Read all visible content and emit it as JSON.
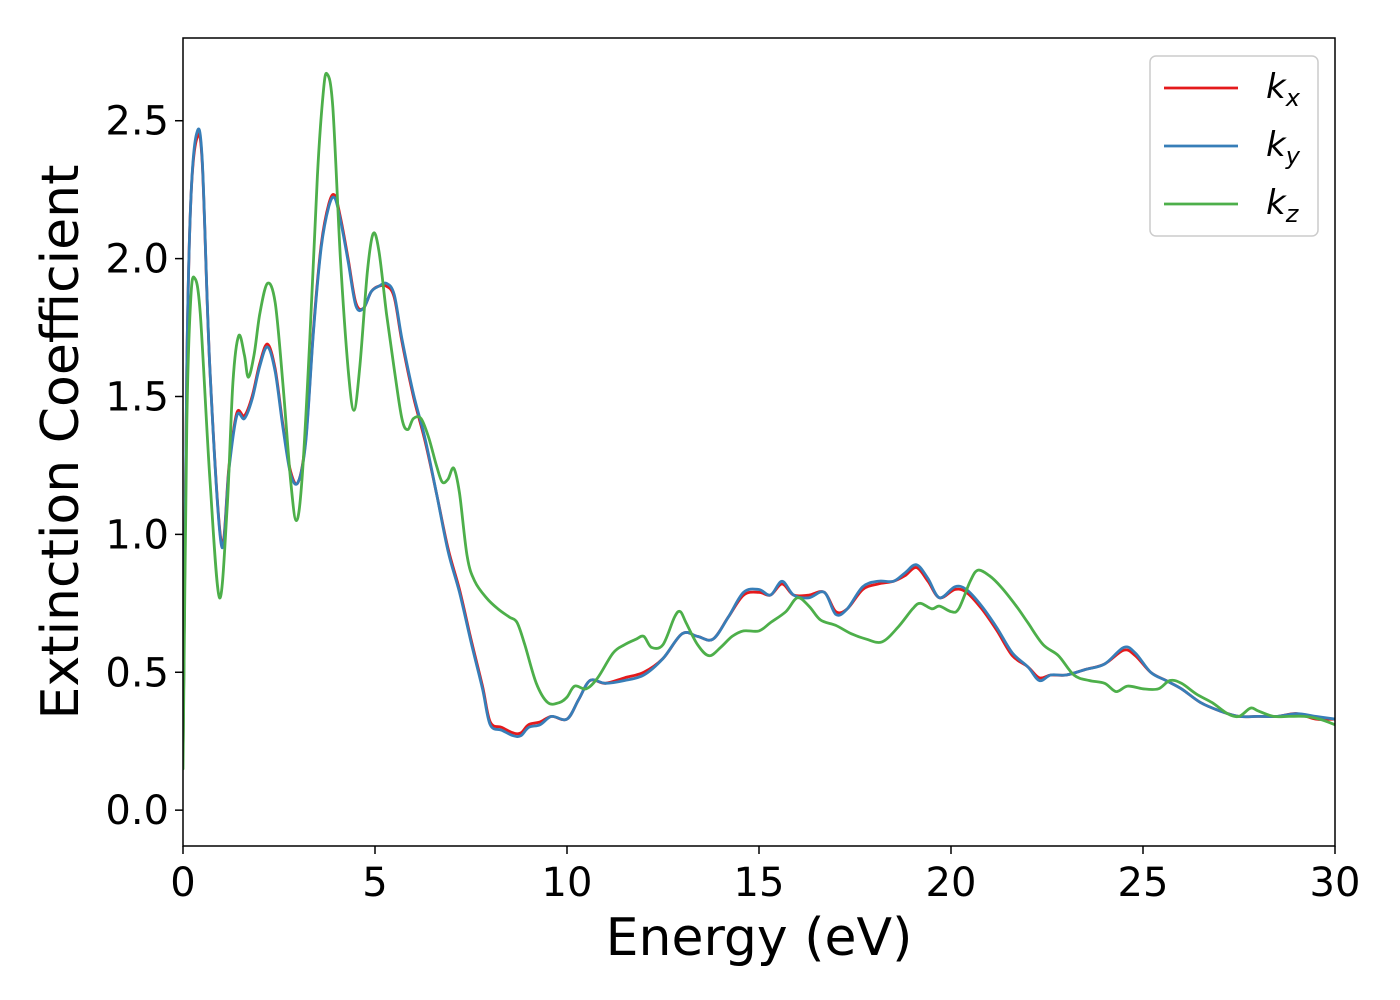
{
  "chart_data": {
    "type": "line",
    "title": "",
    "xlabel": "Energy (eV)",
    "ylabel": "Extinction Coefficient",
    "xlim": [
      0,
      30
    ],
    "ylim": [
      -0.13,
      2.8
    ],
    "xticks": [
      0,
      5,
      10,
      15,
      20,
      25,
      30
    ],
    "xtick_labels": [
      "0",
      "5",
      "10",
      "15",
      "20",
      "25",
      "30"
    ],
    "yticks": [
      0.0,
      0.5,
      1.0,
      1.5,
      2.0,
      2.5
    ],
    "ytick_labels": [
      "0.0",
      "0.5",
      "1.0",
      "1.5",
      "2.0",
      "2.5"
    ],
    "grid": false,
    "legend": {
      "placement": "top-right",
      "entries": [
        {
          "base": "k",
          "sub": "x",
          "color": "#e41a1c"
        },
        {
          "base": "k",
          "sub": "y",
          "color": "#377eb8"
        },
        {
          "base": "k",
          "sub": "z",
          "color": "#4daf4a"
        }
      ]
    },
    "series": [
      {
        "key": "kx",
        "color": "#e41a1c",
        "points": [
          [
            0,
            0.2
          ],
          [
            0.1,
            1.6
          ],
          [
            0.2,
            2.2
          ],
          [
            0.35,
            2.43
          ],
          [
            0.5,
            2.35
          ],
          [
            0.7,
            1.6
          ],
          [
            1.0,
            0.97
          ],
          [
            1.2,
            1.25
          ],
          [
            1.4,
            1.44
          ],
          [
            1.6,
            1.43
          ],
          [
            1.8,
            1.5
          ],
          [
            2.0,
            1.62
          ],
          [
            2.2,
            1.69
          ],
          [
            2.4,
            1.6
          ],
          [
            2.6,
            1.4
          ],
          [
            2.8,
            1.23
          ],
          [
            3.0,
            1.19
          ],
          [
            3.2,
            1.35
          ],
          [
            3.4,
            1.75
          ],
          [
            3.6,
            2.05
          ],
          [
            3.8,
            2.2
          ],
          [
            3.95,
            2.23
          ],
          [
            4.1,
            2.15
          ],
          [
            4.3,
            2.0
          ],
          [
            4.5,
            1.84
          ],
          [
            4.7,
            1.82
          ],
          [
            4.9,
            1.88
          ],
          [
            5.1,
            1.9
          ],
          [
            5.3,
            1.9
          ],
          [
            5.5,
            1.86
          ],
          [
            5.7,
            1.7
          ],
          [
            6.0,
            1.5
          ],
          [
            6.3,
            1.34
          ],
          [
            6.6,
            1.15
          ],
          [
            6.9,
            0.95
          ],
          [
            7.2,
            0.8
          ],
          [
            7.5,
            0.62
          ],
          [
            7.8,
            0.45
          ],
          [
            8.0,
            0.32
          ],
          [
            8.3,
            0.3
          ],
          [
            8.6,
            0.28
          ],
          [
            8.8,
            0.28
          ],
          [
            9.0,
            0.31
          ],
          [
            9.3,
            0.32
          ],
          [
            9.6,
            0.34
          ],
          [
            10.0,
            0.33
          ],
          [
            10.3,
            0.4
          ],
          [
            10.6,
            0.47
          ],
          [
            11.0,
            0.46
          ],
          [
            11.5,
            0.48
          ],
          [
            12.0,
            0.5
          ],
          [
            12.5,
            0.55
          ],
          [
            13.0,
            0.64
          ],
          [
            13.4,
            0.63
          ],
          [
            13.8,
            0.62
          ],
          [
            14.2,
            0.7
          ],
          [
            14.6,
            0.78
          ],
          [
            15.0,
            0.79
          ],
          [
            15.3,
            0.78
          ],
          [
            15.6,
            0.82
          ],
          [
            15.9,
            0.78
          ],
          [
            16.3,
            0.78
          ],
          [
            16.7,
            0.79
          ],
          [
            17.0,
            0.72
          ],
          [
            17.3,
            0.73
          ],
          [
            17.7,
            0.8
          ],
          [
            18.1,
            0.82
          ],
          [
            18.5,
            0.83
          ],
          [
            18.8,
            0.85
          ],
          [
            19.1,
            0.88
          ],
          [
            19.4,
            0.83
          ],
          [
            19.7,
            0.77
          ],
          [
            20.1,
            0.8
          ],
          [
            20.4,
            0.79
          ],
          [
            20.8,
            0.73
          ],
          [
            21.2,
            0.65
          ],
          [
            21.6,
            0.56
          ],
          [
            22.0,
            0.52
          ],
          [
            22.3,
            0.48
          ],
          [
            22.6,
            0.49
          ],
          [
            23.0,
            0.49
          ],
          [
            23.5,
            0.51
          ],
          [
            24.0,
            0.53
          ],
          [
            24.5,
            0.58
          ],
          [
            24.8,
            0.56
          ],
          [
            25.2,
            0.5
          ],
          [
            25.6,
            0.47
          ],
          [
            26.0,
            0.44
          ],
          [
            26.5,
            0.39
          ],
          [
            27.0,
            0.36
          ],
          [
            27.5,
            0.34
          ],
          [
            28.0,
            0.34
          ],
          [
            28.5,
            0.34
          ],
          [
            29.0,
            0.35
          ],
          [
            29.5,
            0.33
          ],
          [
            30.0,
            0.33
          ]
        ]
      },
      {
        "key": "ky",
        "color": "#377eb8",
        "points": [
          [
            0,
            0.2
          ],
          [
            0.1,
            1.6
          ],
          [
            0.2,
            2.2
          ],
          [
            0.35,
            2.45
          ],
          [
            0.5,
            2.36
          ],
          [
            0.7,
            1.6
          ],
          [
            1.0,
            0.96
          ],
          [
            1.2,
            1.24
          ],
          [
            1.4,
            1.43
          ],
          [
            1.6,
            1.42
          ],
          [
            1.8,
            1.49
          ],
          [
            2.0,
            1.61
          ],
          [
            2.2,
            1.68
          ],
          [
            2.4,
            1.59
          ],
          [
            2.6,
            1.39
          ],
          [
            2.8,
            1.22
          ],
          [
            3.0,
            1.19
          ],
          [
            3.2,
            1.34
          ],
          [
            3.4,
            1.74
          ],
          [
            3.6,
            2.04
          ],
          [
            3.8,
            2.19
          ],
          [
            3.95,
            2.22
          ],
          [
            4.1,
            2.14
          ],
          [
            4.3,
            1.99
          ],
          [
            4.5,
            1.83
          ],
          [
            4.7,
            1.82
          ],
          [
            4.9,
            1.88
          ],
          [
            5.1,
            1.9
          ],
          [
            5.3,
            1.91
          ],
          [
            5.5,
            1.87
          ],
          [
            5.7,
            1.71
          ],
          [
            6.0,
            1.51
          ],
          [
            6.3,
            1.35
          ],
          [
            6.6,
            1.15
          ],
          [
            6.9,
            0.94
          ],
          [
            7.2,
            0.79
          ],
          [
            7.5,
            0.61
          ],
          [
            7.8,
            0.44
          ],
          [
            8.0,
            0.31
          ],
          [
            8.3,
            0.29
          ],
          [
            8.6,
            0.27
          ],
          [
            8.8,
            0.27
          ],
          [
            9.0,
            0.3
          ],
          [
            9.3,
            0.31
          ],
          [
            9.6,
            0.34
          ],
          [
            10.0,
            0.33
          ],
          [
            10.3,
            0.4
          ],
          [
            10.6,
            0.47
          ],
          [
            11.0,
            0.46
          ],
          [
            11.5,
            0.47
          ],
          [
            12.0,
            0.49
          ],
          [
            12.5,
            0.55
          ],
          [
            13.0,
            0.64
          ],
          [
            13.4,
            0.63
          ],
          [
            13.8,
            0.62
          ],
          [
            14.2,
            0.7
          ],
          [
            14.6,
            0.79
          ],
          [
            15.0,
            0.8
          ],
          [
            15.3,
            0.78
          ],
          [
            15.6,
            0.83
          ],
          [
            15.9,
            0.78
          ],
          [
            16.3,
            0.77
          ],
          [
            16.7,
            0.79
          ],
          [
            17.0,
            0.71
          ],
          [
            17.3,
            0.73
          ],
          [
            17.7,
            0.81
          ],
          [
            18.1,
            0.83
          ],
          [
            18.5,
            0.83
          ],
          [
            18.8,
            0.86
          ],
          [
            19.1,
            0.89
          ],
          [
            19.4,
            0.84
          ],
          [
            19.7,
            0.77
          ],
          [
            20.1,
            0.81
          ],
          [
            20.4,
            0.8
          ],
          [
            20.8,
            0.74
          ],
          [
            21.2,
            0.66
          ],
          [
            21.6,
            0.57
          ],
          [
            22.0,
            0.52
          ],
          [
            22.3,
            0.47
          ],
          [
            22.6,
            0.49
          ],
          [
            23.0,
            0.49
          ],
          [
            23.5,
            0.51
          ],
          [
            24.0,
            0.53
          ],
          [
            24.5,
            0.59
          ],
          [
            24.8,
            0.57
          ],
          [
            25.2,
            0.5
          ],
          [
            25.6,
            0.47
          ],
          [
            26.0,
            0.44
          ],
          [
            26.5,
            0.39
          ],
          [
            27.0,
            0.36
          ],
          [
            27.5,
            0.34
          ],
          [
            28.0,
            0.34
          ],
          [
            28.5,
            0.34
          ],
          [
            29.0,
            0.35
          ],
          [
            29.5,
            0.34
          ],
          [
            30.0,
            0.33
          ]
        ]
      },
      {
        "key": "kz",
        "color": "#4daf4a",
        "points": [
          [
            0,
            0.15
          ],
          [
            0.1,
            1.4
          ],
          [
            0.2,
            1.85
          ],
          [
            0.3,
            1.93
          ],
          [
            0.45,
            1.8
          ],
          [
            0.7,
            1.2
          ],
          [
            0.95,
            0.77
          ],
          [
            1.15,
            1.1
          ],
          [
            1.3,
            1.55
          ],
          [
            1.45,
            1.72
          ],
          [
            1.6,
            1.65
          ],
          [
            1.7,
            1.57
          ],
          [
            1.85,
            1.65
          ],
          [
            2.0,
            1.8
          ],
          [
            2.2,
            1.91
          ],
          [
            2.4,
            1.84
          ],
          [
            2.6,
            1.55
          ],
          [
            2.8,
            1.2
          ],
          [
            2.95,
            1.05
          ],
          [
            3.1,
            1.2
          ],
          [
            3.3,
            1.7
          ],
          [
            3.5,
            2.3
          ],
          [
            3.65,
            2.6
          ],
          [
            3.75,
            2.67
          ],
          [
            3.9,
            2.55
          ],
          [
            4.1,
            2.0
          ],
          [
            4.3,
            1.6
          ],
          [
            4.45,
            1.45
          ],
          [
            4.6,
            1.6
          ],
          [
            4.8,
            1.95
          ],
          [
            4.95,
            2.09
          ],
          [
            5.1,
            2.03
          ],
          [
            5.3,
            1.8
          ],
          [
            5.5,
            1.6
          ],
          [
            5.7,
            1.42
          ],
          [
            5.85,
            1.38
          ],
          [
            6.0,
            1.42
          ],
          [
            6.2,
            1.42
          ],
          [
            6.4,
            1.35
          ],
          [
            6.6,
            1.25
          ],
          [
            6.75,
            1.19
          ],
          [
            6.9,
            1.2
          ],
          [
            7.05,
            1.24
          ],
          [
            7.2,
            1.15
          ],
          [
            7.4,
            0.92
          ],
          [
            7.6,
            0.83
          ],
          [
            7.9,
            0.77
          ],
          [
            8.2,
            0.73
          ],
          [
            8.5,
            0.7
          ],
          [
            8.7,
            0.68
          ],
          [
            8.9,
            0.6
          ],
          [
            9.2,
            0.46
          ],
          [
            9.5,
            0.39
          ],
          [
            9.8,
            0.39
          ],
          [
            10.0,
            0.41
          ],
          [
            10.2,
            0.45
          ],
          [
            10.5,
            0.44
          ],
          [
            10.8,
            0.48
          ],
          [
            11.2,
            0.57
          ],
          [
            11.5,
            0.6
          ],
          [
            11.8,
            0.62
          ],
          [
            12.0,
            0.63
          ],
          [
            12.2,
            0.59
          ],
          [
            12.5,
            0.6
          ],
          [
            12.8,
            0.7
          ],
          [
            12.95,
            0.72
          ],
          [
            13.1,
            0.68
          ],
          [
            13.4,
            0.6
          ],
          [
            13.7,
            0.56
          ],
          [
            14.0,
            0.59
          ],
          [
            14.3,
            0.63
          ],
          [
            14.6,
            0.65
          ],
          [
            15.0,
            0.65
          ],
          [
            15.3,
            0.68
          ],
          [
            15.7,
            0.72
          ],
          [
            16.0,
            0.77
          ],
          [
            16.3,
            0.74
          ],
          [
            16.6,
            0.69
          ],
          [
            17.0,
            0.67
          ],
          [
            17.4,
            0.64
          ],
          [
            17.8,
            0.62
          ],
          [
            18.2,
            0.61
          ],
          [
            18.6,
            0.66
          ],
          [
            19.0,
            0.73
          ],
          [
            19.2,
            0.75
          ],
          [
            19.5,
            0.73
          ],
          [
            19.7,
            0.74
          ],
          [
            20.0,
            0.72
          ],
          [
            20.2,
            0.73
          ],
          [
            20.5,
            0.83
          ],
          [
            20.7,
            0.87
          ],
          [
            21.0,
            0.85
          ],
          [
            21.3,
            0.81
          ],
          [
            21.7,
            0.74
          ],
          [
            22.0,
            0.68
          ],
          [
            22.4,
            0.6
          ],
          [
            22.8,
            0.56
          ],
          [
            23.2,
            0.49
          ],
          [
            23.6,
            0.47
          ],
          [
            24.0,
            0.46
          ],
          [
            24.3,
            0.43
          ],
          [
            24.6,
            0.45
          ],
          [
            25.0,
            0.44
          ],
          [
            25.4,
            0.44
          ],
          [
            25.7,
            0.47
          ],
          [
            26.0,
            0.46
          ],
          [
            26.4,
            0.42
          ],
          [
            26.8,
            0.39
          ],
          [
            27.2,
            0.35
          ],
          [
            27.5,
            0.34
          ],
          [
            27.8,
            0.37
          ],
          [
            28.0,
            0.36
          ],
          [
            28.4,
            0.34
          ],
          [
            28.8,
            0.34
          ],
          [
            29.2,
            0.34
          ],
          [
            29.6,
            0.33
          ],
          [
            30.0,
            0.31
          ]
        ]
      }
    ]
  }
}
